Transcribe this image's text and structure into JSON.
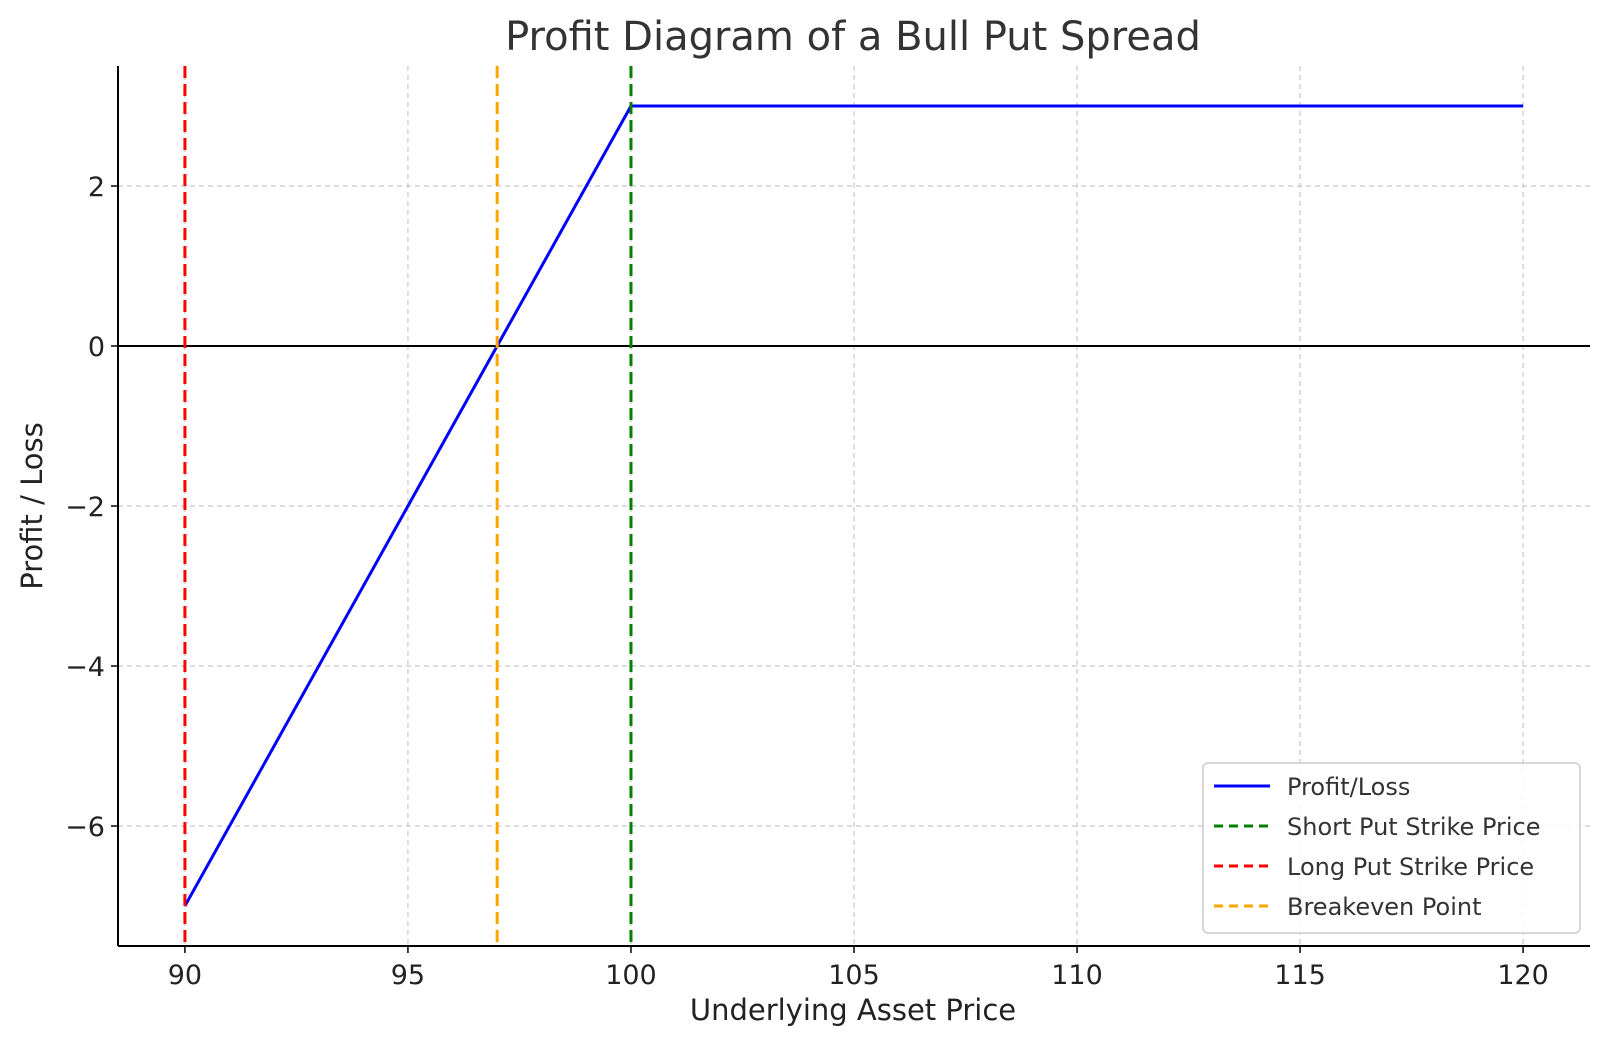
{
  "chart_data": {
    "type": "line",
    "title": "Profit Diagram of a Bull Put Spread",
    "xlabel": "Underlying Asset Price",
    "ylabel": "Profit / Loss",
    "xlim": [
      88.5,
      121.5
    ],
    "ylim": [
      -7.5,
      3.5
    ],
    "x_ticks": [
      90,
      95,
      100,
      105,
      110,
      115,
      120
    ],
    "y_ticks": [
      {
        "value": -6,
        "label": "−6"
      },
      {
        "value": -4,
        "label": "−4"
      },
      {
        "value": -2,
        "label": "−2"
      },
      {
        "value": 0,
        "label": "0"
      },
      {
        "value": 2,
        "label": "2"
      }
    ],
    "grid": true,
    "legend_position": "lower-right",
    "series": [
      {
        "name": "Profit/Loss",
        "color": "#0000ff",
        "style": "solid",
        "x": [
          90,
          100,
          120
        ],
        "y": [
          -7,
          3,
          3
        ]
      }
    ],
    "vlines": [
      {
        "name": "Short Put Strike Price",
        "x": 100,
        "color": "#008000",
        "style": "dashed"
      },
      {
        "name": "Long Put Strike Price",
        "x": 90,
        "color": "#ff0000",
        "style": "dashed"
      },
      {
        "name": "Breakeven Point",
        "x": 97,
        "color": "#ffa500",
        "style": "dashed"
      }
    ],
    "hlines": [
      {
        "y": 0,
        "color": "#000000",
        "style": "solid"
      }
    ]
  }
}
